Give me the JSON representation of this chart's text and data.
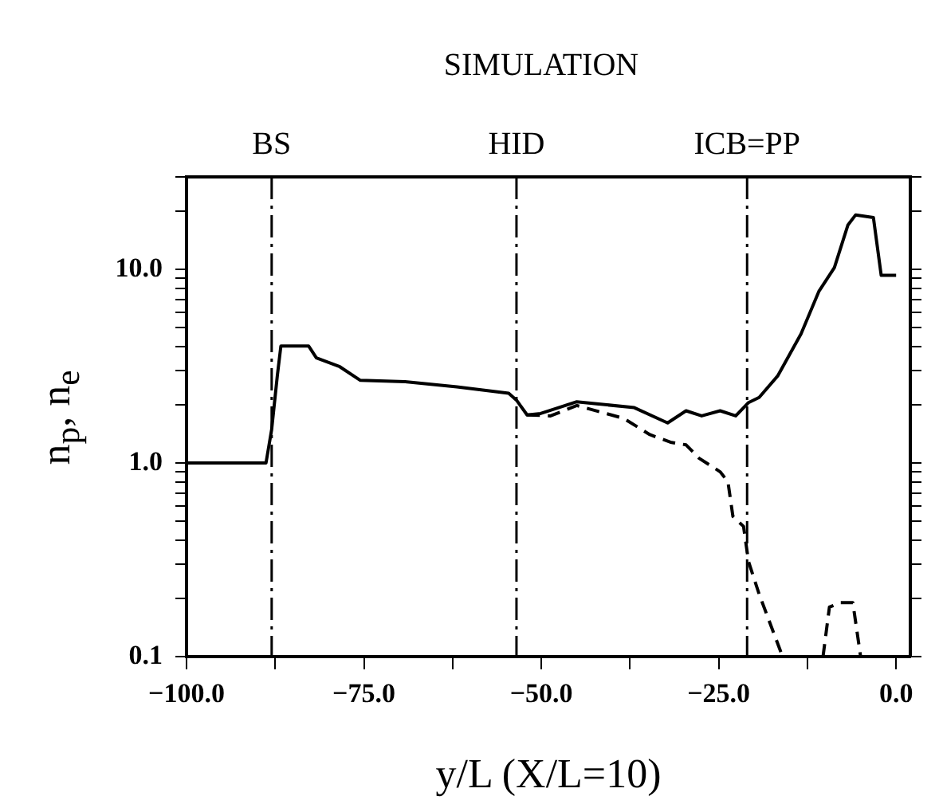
{
  "chart_data": {
    "type": "line",
    "title": "SIMULATION",
    "xlabel": "y/L (X/L=10)",
    "ylabel": "n$_{p}$, n$_{e}$",
    "series": [
      {
        "color": "#000000",
        "line_style": "solid",
        "x": [
          -100,
          -88.8,
          -88,
          -87.2,
          -86.7,
          -82.8,
          -81.7,
          -78.4,
          -75.5,
          -69.2,
          -61.9,
          -54.6,
          -53.5,
          -52,
          -50.1,
          -45,
          -36.9,
          -32.2,
          -29.6,
          -27.4,
          -24.8,
          -22.6,
          -20.8,
          -19.3,
          -16.7,
          -13.4,
          -10.9,
          -8.7,
          -6.8,
          -5.7,
          -3.2,
          -2.1,
          0
        ],
        "values": [
          1.0,
          1.0,
          1.49,
          2.83,
          4.02,
          4.02,
          3.49,
          3.14,
          2.67,
          2.63,
          2.47,
          2.29,
          2.11,
          1.77,
          1.8,
          2.07,
          1.93,
          1.61,
          1.86,
          1.75,
          1.86,
          1.75,
          2.05,
          2.18,
          2.81,
          4.64,
          7.67,
          10.2,
          16.9,
          19.1,
          18.5,
          9.3,
          9.3
        ]
      },
      {
        "color": "#000000",
        "line_style": "dashed",
        "x": [
          -52,
          -48.7,
          -45,
          -38.4,
          -34.7,
          -31.8,
          -29.6,
          -27.8,
          -24.8,
          -23.7,
          -23,
          -21.5,
          -20.8,
          -19.3,
          -17.5,
          -16,
          -13,
          -10.3,
          -9.4,
          -7.9,
          -6.1,
          -5
        ],
        "values": [
          1.77,
          1.75,
          1.98,
          1.7,
          1.4,
          1.28,
          1.24,
          1.06,
          0.9,
          0.8,
          0.53,
          0.47,
          0.31,
          0.21,
          0.14,
          0.1,
          null,
          0.1,
          0.18,
          0.19,
          0.19,
          0.1
        ]
      }
    ],
    "xlim": [
      -100,
      2
    ],
    "xticks": [
      {
        "value": -100,
        "label": "−100.0"
      },
      {
        "value": -87.5,
        "label": null
      },
      {
        "value": -75,
        "label": "−75.0"
      },
      {
        "value": -62.5,
        "label": null
      },
      {
        "value": -50,
        "label": "−50.0"
      },
      {
        "value": -37.5,
        "label": null
      },
      {
        "value": -25,
        "label": "−25.0"
      },
      {
        "value": -12.5,
        "label": null
      },
      {
        "value": 0,
        "label": "0.0"
      }
    ],
    "ylim": [
      0.1,
      30
    ],
    "log": "y",
    "yticks": [
      0.1,
      {
        "value": 0.2,
        "label": null
      },
      {
        "value": 0.3,
        "label": null
      },
      {
        "value": 0.4,
        "label": null
      },
      {
        "value": 0.5,
        "label": null
      },
      {
        "value": 0.6,
        "label": null
      },
      {
        "value": 0.7,
        "label": null
      },
      {
        "value": 0.8,
        "label": null
      },
      {
        "value": 0.9,
        "label": null
      },
      {
        "value": 1,
        "label": "1.0"
      },
      {
        "value": 2,
        "label": null
      },
      {
        "value": 3,
        "label": null
      },
      {
        "value": 4,
        "label": null
      },
      {
        "value": 5,
        "label": null
      },
      {
        "value": 6,
        "label": null
      },
      {
        "value": 7,
        "label": null
      },
      {
        "value": 8,
        "label": null
      },
      {
        "value": 9,
        "label": null
      },
      {
        "value": 10,
        "label": "10.0"
      },
      {
        "value": 20,
        "label": null
      },
      {
        "value": 30,
        "label": null
      }
    ],
    "ref_lines": [
      {
        "axis": "x",
        "value": -88,
        "label": "BS",
        "line_style": "dashed"
      },
      {
        "axis": "x",
        "value": -53.5,
        "label": "HID",
        "line_style": "dashed"
      },
      {
        "axis": "x",
        "value": -21,
        "label": "ICB=PP",
        "line_style": "dashed"
      }
    ],
    "grid": false,
    "legend": false,
    "marker": "none"
  }
}
